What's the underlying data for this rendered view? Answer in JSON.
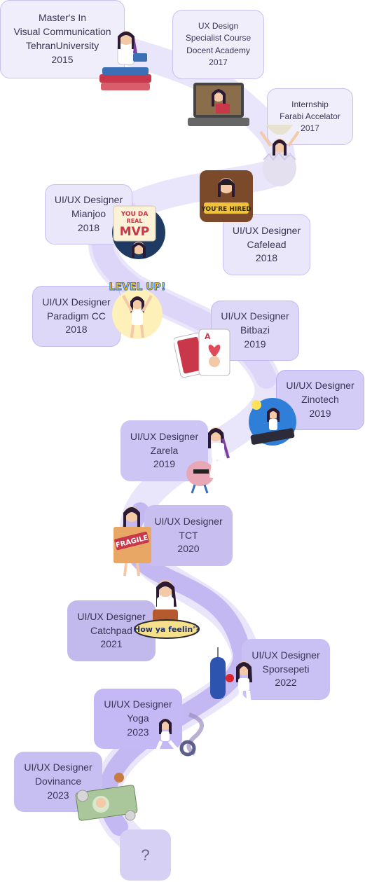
{
  "milestones": [
    {
      "lines": [
        "Master's In",
        "Visual Communication",
        "TehranUniversity",
        "2015"
      ]
    },
    {
      "lines": [
        "UX Design",
        "Specialist Course",
        "Docent Academy",
        "2017"
      ]
    },
    {
      "lines": [
        "Internship",
        "Farabi Accelator",
        "2017"
      ]
    },
    {
      "lines": [
        "UI/UX Designer",
        "Mianjoo",
        "2018"
      ]
    },
    {
      "lines": [
        "UI/UX Designer",
        "Cafelead",
        "2018"
      ]
    },
    {
      "lines": [
        "UI/UX Designer",
        "Paradigm CC",
        "2018"
      ]
    },
    {
      "lines": [
        "UI/UX Designer",
        "Bitbazi",
        "2019"
      ]
    },
    {
      "lines": [
        "UI/UX Designer",
        "Zinotech",
        "2019"
      ]
    },
    {
      "lines": [
        "UI/UX Designer",
        "Zarela",
        "2019"
      ]
    },
    {
      "lines": [
        "UI/UX Designer",
        "TCT",
        "2020"
      ]
    },
    {
      "lines": [
        "UI/UX Designer",
        "Catchpad",
        "2021"
      ]
    },
    {
      "lines": [
        "UI/UX Designer",
        "Sporsepeti",
        "2022"
      ]
    },
    {
      "lines": [
        "UI/UX Designer",
        "Yoga",
        "2023"
      ]
    },
    {
      "lines": [
        "UI/UX Designer",
        "Dovinance",
        "2023"
      ]
    }
  ],
  "future": {
    "label": "?"
  },
  "stickers": {
    "mvp": [
      "YOU DA",
      "REAL",
      "MVP"
    ],
    "hired": "YOU'RE HIRED",
    "level_up": "LEVEL UP!",
    "fragile": "FRAGILE",
    "how": "How ya feelin'?",
    "card_letter": "A"
  },
  "colors": {
    "path": "#c4b8f2",
    "path_light": "#e9e5fb",
    "card_text": "#3b3557",
    "purple_hair": "#7a3fa0",
    "skin": "#f3c9a8"
  }
}
